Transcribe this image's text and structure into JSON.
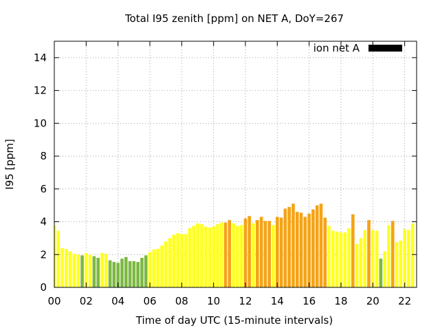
{
  "chart_data": {
    "type": "bar",
    "title": "Total I95 zenith [ppm] on NET A, DoY=267",
    "xlabel": "Time of day UTC (15-minute intervals)",
    "ylabel": "I95 [ppm]",
    "xlim": [
      0,
      22.75
    ],
    "ylim": [
      0,
      15
    ],
    "xticks": [
      "00",
      "02",
      "04",
      "06",
      "08",
      "10",
      "12",
      "14",
      "16",
      "18",
      "20",
      "22"
    ],
    "yticks": [
      "0",
      "2",
      "4",
      "6",
      "8",
      "10",
      "12",
      "14"
    ],
    "grid": true,
    "legend": {
      "position": "top-right",
      "label": "ion net A",
      "color": "#000000"
    },
    "interval_hours": 0.25,
    "colors": {
      "green": "#7db843",
      "yellow": "#ffff22",
      "orange": "#f5a316"
    },
    "values": [
      3.8,
      3.45,
      2.4,
      2.35,
      2.2,
      2.05,
      2.0,
      1.95,
      2.1,
      2.0,
      1.9,
      1.8,
      2.1,
      2.05,
      1.65,
      1.55,
      1.5,
      1.75,
      1.85,
      1.6,
      1.6,
      1.55,
      1.8,
      1.95,
      2.15,
      2.3,
      2.35,
      2.55,
      2.8,
      3.0,
      3.2,
      3.3,
      3.25,
      3.25,
      3.6,
      3.75,
      3.9,
      3.85,
      3.7,
      3.65,
      3.7,
      3.85,
      3.95,
      3.95,
      4.1,
      3.9,
      3.75,
      3.8,
      4.2,
      4.35,
      3.9,
      4.1,
      4.3,
      4.05,
      4.05,
      3.8,
      4.3,
      4.25,
      4.8,
      4.9,
      5.1,
      4.6,
      4.55,
      4.3,
      4.5,
      4.75,
      5.0,
      5.1,
      4.25,
      3.75,
      3.45,
      3.4,
      3.35,
      3.35,
      3.6,
      4.45,
      2.65,
      3.0,
      3.5,
      4.1,
      3.5,
      3.45,
      1.75,
      2.2,
      3.8,
      4.05,
      2.75,
      2.85,
      3.55,
      3.5,
      3.9
    ],
    "bar_colors": [
      "yellow",
      "yellow",
      "yellow",
      "yellow",
      "yellow",
      "yellow",
      "yellow",
      "green",
      "yellow",
      "yellow",
      "green",
      "green",
      "yellow",
      "yellow",
      "green",
      "green",
      "green",
      "green",
      "green",
      "green",
      "green",
      "green",
      "green",
      "green",
      "yellow",
      "yellow",
      "yellow",
      "yellow",
      "yellow",
      "yellow",
      "yellow",
      "yellow",
      "yellow",
      "yellow",
      "yellow",
      "yellow",
      "yellow",
      "yellow",
      "yellow",
      "yellow",
      "yellow",
      "yellow",
      "yellow",
      "orange",
      "orange",
      "yellow",
      "yellow",
      "yellow",
      "orange",
      "orange",
      "yellow",
      "orange",
      "orange",
      "orange",
      "orange",
      "yellow",
      "orange",
      "orange",
      "orange",
      "orange",
      "orange",
      "orange",
      "orange",
      "orange",
      "orange",
      "orange",
      "orange",
      "orange",
      "orange",
      "yellow",
      "yellow",
      "yellow",
      "yellow",
      "yellow",
      "yellow",
      "orange",
      "yellow",
      "yellow",
      "yellow",
      "orange",
      "yellow",
      "yellow",
      "green",
      "yellow",
      "yellow",
      "orange",
      "yellow",
      "yellow",
      "yellow",
      "yellow",
      "yellow"
    ]
  }
}
